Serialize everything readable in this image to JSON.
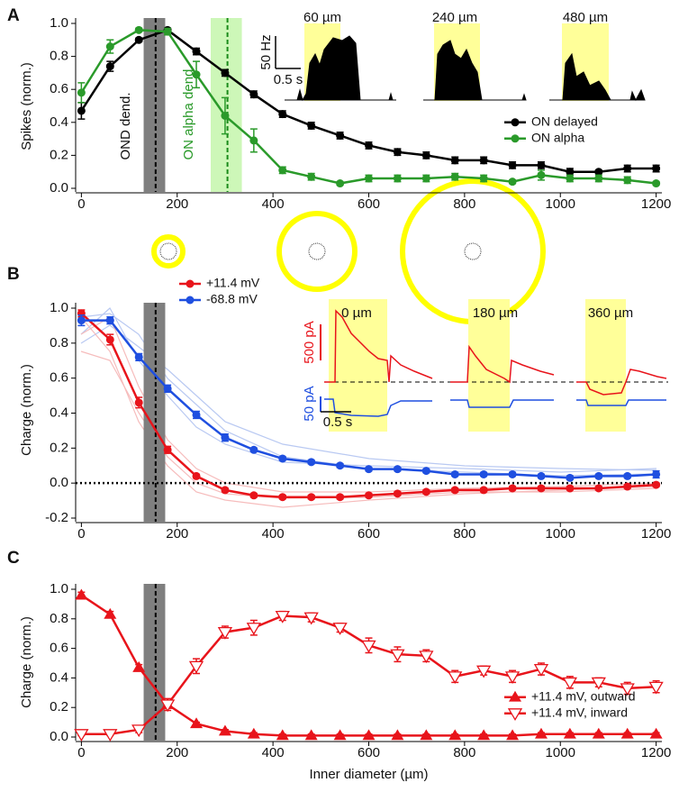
{
  "chart_data": [
    {
      "panel": "A",
      "type": "line",
      "ylabel": "Spikes (norm.)",
      "x": [
        0,
        60,
        120,
        180,
        240,
        300,
        360,
        420,
        480,
        540,
        600,
        660,
        720,
        780,
        840,
        900,
        960,
        1020,
        1080,
        1140,
        1200
      ],
      "xlim": [
        -12,
        1212
      ],
      "xticks": [
        0,
        200,
        400,
        600,
        800,
        1000,
        1200
      ],
      "ylim": [
        0,
        1
      ],
      "yticks": [
        {
          "value": 0,
          "label": "0.0"
        },
        0.2,
        0.4,
        0.6,
        0.8,
        {
          "value": 1,
          "label": "1.0"
        }
      ],
      "legend": "center right",
      "bands": [
        {
          "x0": 130,
          "x1": 175,
          "color": "#7f7f7f"
        },
        {
          "x0": 270,
          "x1": 335,
          "color": "#cdf7b8"
        }
      ],
      "vlines": [
        {
          "x": 155,
          "color": "#000000"
        },
        {
          "x": 305,
          "color": "#1a8a1a"
        }
      ],
      "annotations": [
        "OND dend.",
        "ON alpha dend."
      ],
      "inset_labels": [
        "60 µm",
        "240 µm",
        "480 µm"
      ],
      "scale_labels": [
        "50 Hz",
        "0.5 s"
      ],
      "series": [
        {
          "name": "ON delayed",
          "color": "#000000",
          "marker": "circle",
          "values": [
            0.47,
            0.74,
            0.9,
            0.96,
            0.83,
            0.7,
            0.57,
            0.45,
            0.38,
            0.32,
            0.26,
            0.22,
            0.2,
            0.17,
            0.17,
            0.14,
            0.14,
            0.1,
            0.1,
            0.12,
            0.12
          ],
          "errors": [
            0.05,
            0.03,
            0.01,
            0.01,
            0.02,
            0.02,
            0.02,
            0.02,
            0.02,
            0.02,
            0.02,
            0.02,
            0.02,
            0.02,
            0.02,
            0.02,
            0.02,
            0.02,
            0.01,
            0.02,
            0.02
          ]
        },
        {
          "name": "ON alpha",
          "color": "#2a9a2a",
          "marker": "circle",
          "values": [
            0.58,
            0.86,
            0.96,
            0.95,
            0.69,
            0.44,
            0.29,
            0.11,
            0.07,
            0.03,
            0.06,
            0.06,
            0.06,
            0.07,
            0.06,
            0.04,
            0.08,
            0.06,
            0.06,
            0.05,
            0.03
          ],
          "errors": [
            0.06,
            0.04,
            0.01,
            0.02,
            0.08,
            0.11,
            0.07,
            0.02,
            0.02,
            0.01,
            0.02,
            0.02,
            0.02,
            0.02,
            0.02,
            0.01,
            0.03,
            0.02,
            0.02,
            0.02,
            0.01
          ]
        }
      ]
    },
    {
      "panel": "B",
      "type": "line",
      "ylabel": "Charge (norm.)",
      "x": [
        0,
        60,
        120,
        180,
        240,
        300,
        360,
        420,
        480,
        540,
        600,
        660,
        720,
        780,
        840,
        900,
        960,
        1020,
        1080,
        1140,
        1200
      ],
      "xlim": [
        -12,
        1212
      ],
      "xticks": [
        0,
        200,
        400,
        600,
        800,
        1000,
        1200
      ],
      "ylim": [
        -0.2,
        1
      ],
      "yticks": [
        -0.2,
        {
          "value": 0,
          "label": "0.0"
        },
        0.2,
        0.4,
        0.6,
        0.8,
        {
          "value": 1,
          "label": "1.0"
        }
      ],
      "legend": "upper left",
      "bands": [
        {
          "x0": 130,
          "x1": 175,
          "color": "#7f7f7f"
        }
      ],
      "vlines": [
        {
          "x": 155,
          "color": "#000000"
        }
      ],
      "hlines": [
        0
      ],
      "inset_labels": [
        "0 µm",
        "180 µm",
        "360 µm"
      ],
      "scale_labels": [
        "500 pA",
        "50 pA",
        "0.5 s"
      ],
      "series": [
        {
          "name": "+11.4 mV",
          "color": "#e8141b",
          "marker": "circle",
          "values": [
            0.97,
            0.82,
            0.46,
            0.19,
            0.04,
            -0.04,
            -0.07,
            -0.08,
            -0.08,
            -0.08,
            -0.07,
            -0.06,
            -0.05,
            -0.04,
            -0.04,
            -0.03,
            -0.03,
            -0.03,
            -0.03,
            -0.02,
            -0.01
          ],
          "errors": [
            0.02,
            0.03,
            0.03,
            0.02,
            0.01,
            0.01,
            0.01,
            0.01,
            0.01,
            0.01,
            0.01,
            0.01,
            0.01,
            0.01,
            0.01,
            0.01,
            0.01,
            0.01,
            0.01,
            0.01,
            0.01
          ]
        },
        {
          "name": "-68.8 mV",
          "color": "#1f4fe0",
          "marker": "circle",
          "values": [
            0.93,
            0.93,
            0.72,
            0.54,
            0.39,
            0.26,
            0.19,
            0.14,
            0.12,
            0.1,
            0.08,
            0.08,
            0.07,
            0.05,
            0.05,
            0.05,
            0.04,
            0.03,
            0.04,
            0.04,
            0.05
          ],
          "errors": [
            0.03,
            0.02,
            0.02,
            0.02,
            0.02,
            0.02,
            0.01,
            0.01,
            0.01,
            0.01,
            0.01,
            0.01,
            0.01,
            0.01,
            0.01,
            0.01,
            0.01,
            0.01,
            0.01,
            0.01,
            0.02
          ]
        }
      ]
    },
    {
      "panel": "C",
      "type": "line",
      "ylabel": "Charge (norm.)",
      "xlabel": "Inner diameter (µm)",
      "x": [
        0,
        60,
        120,
        180,
        240,
        300,
        360,
        420,
        480,
        540,
        600,
        660,
        720,
        780,
        840,
        900,
        960,
        1020,
        1080,
        1140,
        1200
      ],
      "xlim": [
        -12,
        1212
      ],
      "xticks": [
        0,
        200,
        400,
        600,
        800,
        1000,
        1200
      ],
      "ylim": [
        0,
        1
      ],
      "yticks": [
        {
          "value": 0,
          "label": "0.0"
        },
        0.2,
        0.4,
        0.6,
        0.8,
        {
          "value": 1,
          "label": "1.0"
        }
      ],
      "legend": "lower right",
      "bands": [
        {
          "x0": 130,
          "x1": 175,
          "color": "#7f7f7f"
        }
      ],
      "vlines": [
        {
          "x": 155,
          "color": "#000000"
        }
      ],
      "series": [
        {
          "name": "+11.4 mV, outward",
          "color": "#e8141b",
          "marker": "triangle-up",
          "values": [
            0.96,
            0.83,
            0.47,
            0.22,
            0.09,
            0.04,
            0.02,
            0.01,
            0.01,
            0.01,
            0.01,
            0.01,
            0.01,
            0.01,
            0.01,
            0.01,
            0.02,
            0.02,
            0.02,
            0.02,
            0.02
          ],
          "errors": [
            0.02,
            0.02,
            0.02,
            0.02,
            0.01,
            0.01,
            0.01,
            0.01,
            0.01,
            0.01,
            0.01,
            0.01,
            0.01,
            0.01,
            0.01,
            0.01,
            0.01,
            0.01,
            0.01,
            0.01,
            0.01
          ]
        },
        {
          "name": "+11.4 mV, inward",
          "color": "#e8141b",
          "marker": "triangle-down-open",
          "values": [
            0.02,
            0.02,
            0.05,
            0.22,
            0.48,
            0.71,
            0.74,
            0.82,
            0.81,
            0.74,
            0.62,
            0.56,
            0.55,
            0.41,
            0.45,
            0.41,
            0.46,
            0.37,
            0.37,
            0.33,
            0.34
          ],
          "errors": [
            0.01,
            0.01,
            0.02,
            0.04,
            0.05,
            0.04,
            0.05,
            0.03,
            0.03,
            0.03,
            0.05,
            0.05,
            0.04,
            0.04,
            0.03,
            0.04,
            0.04,
            0.04,
            0.03,
            0.04,
            0.04
          ]
        }
      ]
    }
  ]
}
